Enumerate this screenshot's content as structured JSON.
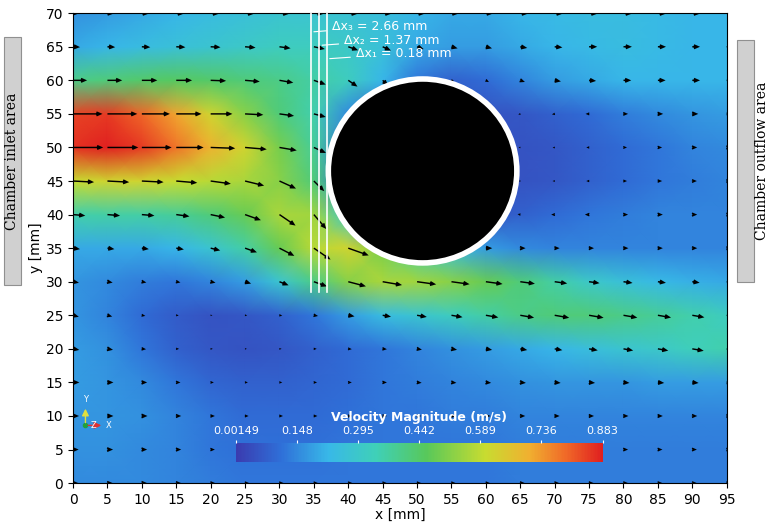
{
  "chart_data": {
    "type": "vector_field",
    "xlabel": "x [mm]",
    "ylabel": "y [mm]",
    "xlim": [
      0,
      95
    ],
    "ylim": [
      0,
      70
    ],
    "xticks": [
      0,
      5,
      10,
      15,
      20,
      25,
      30,
      35,
      40,
      45,
      50,
      55,
      60,
      65,
      70,
      75,
      80,
      85,
      90,
      95
    ],
    "yticks": [
      0,
      5,
      10,
      15,
      20,
      25,
      30,
      35,
      40,
      45,
      50,
      55,
      60,
      65,
      70
    ],
    "x": [
      0,
      5,
      10,
      15,
      20,
      25,
      30,
      35,
      40,
      45,
      50,
      55,
      60,
      65,
      70,
      75,
      80,
      85,
      90,
      95
    ],
    "y": [
      0,
      5,
      10,
      15,
      20,
      25,
      30,
      35,
      40,
      45,
      50,
      55,
      60,
      65,
      70
    ],
    "cells": [
      [
        0.15,
        0.15,
        0.15,
        0.14,
        0.13,
        0.12,
        0.12,
        0.12,
        0.12,
        0.12,
        0.12,
        0.12,
        0.12,
        0.13,
        0.13,
        0.13,
        0.13,
        0.13,
        0.13,
        0.13
      ],
      [
        0.16,
        0.16,
        0.15,
        0.14,
        0.12,
        0.11,
        0.11,
        0.11,
        0.12,
        0.12,
        0.12,
        0.12,
        0.12,
        0.13,
        0.13,
        0.13,
        0.13,
        0.13,
        0.13,
        0.13
      ],
      [
        0.17,
        0.17,
        0.16,
        0.14,
        0.12,
        0.1,
        0.1,
        0.1,
        0.11,
        0.12,
        0.12,
        0.13,
        0.13,
        0.14,
        0.14,
        0.14,
        0.14,
        0.14,
        0.14,
        0.14
      ],
      [
        0.18,
        0.17,
        0.15,
        0.12,
        0.09,
        0.08,
        0.08,
        0.09,
        0.1,
        0.12,
        0.13,
        0.14,
        0.15,
        0.16,
        0.17,
        0.17,
        0.17,
        0.18,
        0.18,
        0.18
      ],
      [
        0.18,
        0.16,
        0.12,
        0.08,
        0.06,
        0.05,
        0.06,
        0.08,
        0.1,
        0.12,
        0.14,
        0.16,
        0.18,
        0.2,
        0.22,
        0.25,
        0.28,
        0.3,
        0.33,
        0.35
      ],
      [
        0.17,
        0.14,
        0.1,
        0.07,
        0.05,
        0.06,
        0.08,
        0.12,
        0.18,
        0.24,
        0.28,
        0.32,
        0.36,
        0.4,
        0.42,
        0.42,
        0.4,
        0.38,
        0.35,
        0.32
      ],
      [
        0.17,
        0.15,
        0.13,
        0.12,
        0.14,
        0.18,
        0.28,
        0.4,
        0.52,
        0.56,
        0.55,
        0.52,
        0.48,
        0.42,
        0.36,
        0.3,
        0.26,
        0.23,
        0.21,
        0.2
      ],
      [
        0.2,
        0.2,
        0.2,
        0.22,
        0.28,
        0.36,
        0.48,
        0.58,
        0.62,
        0.5,
        0.35,
        0.25,
        0.18,
        0.15,
        0.14,
        0.14,
        0.14,
        0.14,
        0.14,
        0.14
      ],
      [
        0.35,
        0.36,
        0.36,
        0.38,
        0.42,
        0.48,
        0.56,
        0.55,
        0.3,
        0.1,
        0.05,
        0.05,
        0.05,
        0.08,
        0.1,
        0.12,
        0.13,
        0.14,
        0.14,
        0.14
      ],
      [
        0.6,
        0.62,
        0.62,
        0.6,
        0.58,
        0.56,
        0.52,
        0.42,
        0.1,
        0.05,
        0.05,
        0.05,
        0.05,
        0.05,
        0.06,
        0.08,
        0.1,
        0.12,
        0.13,
        0.14
      ],
      [
        0.86,
        0.88,
        0.85,
        0.78,
        0.7,
        0.62,
        0.5,
        0.38,
        0.1,
        0.05,
        0.05,
        0.05,
        0.05,
        0.05,
        0.06,
        0.08,
        0.1,
        0.12,
        0.14,
        0.15
      ],
      [
        0.84,
        0.85,
        0.8,
        0.72,
        0.62,
        0.52,
        0.42,
        0.35,
        0.15,
        0.05,
        0.05,
        0.05,
        0.05,
        0.06,
        0.08,
        0.1,
        0.13,
        0.15,
        0.17,
        0.18
      ],
      [
        0.4,
        0.42,
        0.44,
        0.45,
        0.44,
        0.42,
        0.4,
        0.36,
        0.32,
        0.22,
        0.12,
        0.08,
        0.1,
        0.14,
        0.18,
        0.2,
        0.22,
        0.22,
        0.22,
        0.22
      ],
      [
        0.2,
        0.22,
        0.24,
        0.26,
        0.28,
        0.3,
        0.32,
        0.32,
        0.3,
        0.26,
        0.2,
        0.18,
        0.18,
        0.2,
        0.22,
        0.23,
        0.24,
        0.23,
        0.22,
        0.22
      ],
      [
        0.16,
        0.18,
        0.2,
        0.22,
        0.24,
        0.26,
        0.28,
        0.28,
        0.27,
        0.25,
        0.22,
        0.2,
        0.2,
        0.22,
        0.23,
        0.24,
        0.24,
        0.23,
        0.22,
        0.22
      ]
    ],
    "vector_angles": [
      [
        0,
        0,
        0,
        0,
        0,
        0,
        0,
        0,
        0,
        0,
        0,
        0,
        0,
        0,
        0,
        0,
        0,
        0,
        0,
        0
      ],
      [
        0,
        0,
        0,
        0,
        0,
        0,
        0,
        0,
        0,
        0,
        0,
        0,
        0,
        0,
        0,
        0,
        0,
        0,
        0,
        0
      ],
      [
        0,
        0,
        0,
        0,
        0,
        0,
        0,
        0,
        0,
        0,
        0,
        0,
        0,
        0,
        0,
        0,
        0,
        0,
        0,
        0
      ],
      [
        0,
        0,
        0,
        0,
        0,
        0,
        0,
        0,
        0,
        0,
        -5,
        -5,
        -5,
        -5,
        -5,
        -5,
        -5,
        -5,
        -5,
        -5
      ],
      [
        -10,
        -10,
        -5,
        0,
        0,
        0,
        0,
        0,
        -5,
        -5,
        -10,
        -10,
        -10,
        -10,
        -10,
        -10,
        -10,
        -10,
        -10,
        -10
      ],
      [
        -15,
        -15,
        -10,
        -5,
        -5,
        -5,
        -10,
        -10,
        -10,
        -10,
        -10,
        -10,
        -10,
        -10,
        -10,
        -10,
        -10,
        -10,
        -10,
        -10
      ],
      [
        -10,
        -10,
        -10,
        -10,
        -12,
        -18,
        -22,
        -20,
        -15,
        -10,
        -8,
        -8,
        -8,
        -8,
        -8,
        -8,
        -8,
        -8,
        -8,
        -8
      ],
      [
        -8,
        -8,
        -8,
        -10,
        -14,
        -20,
        -28,
        -35,
        -20,
        -10,
        -5,
        0,
        0,
        0,
        0,
        0,
        0,
        0,
        0,
        0
      ],
      [
        -5,
        -5,
        -5,
        -8,
        -12,
        -20,
        -35,
        -50,
        -40,
        0,
        0,
        0,
        0,
        170,
        180,
        180,
        0,
        0,
        0,
        0
      ],
      [
        -3,
        -3,
        -3,
        -5,
        -8,
        -14,
        -25,
        -45,
        -70,
        0,
        0,
        0,
        0,
        180,
        180,
        180,
        0,
        0,
        0,
        0
      ],
      [
        0,
        0,
        0,
        0,
        -2,
        -5,
        -10,
        -25,
        -80,
        0,
        0,
        0,
        0,
        180,
        -170,
        180,
        0,
        0,
        0,
        0
      ],
      [
        0,
        0,
        0,
        0,
        0,
        -3,
        -8,
        -15,
        -50,
        0,
        0,
        0,
        0,
        -160,
        -170,
        180,
        0,
        0,
        0,
        0
      ],
      [
        0,
        0,
        0,
        0,
        -2,
        -5,
        -10,
        -20,
        -35,
        -45,
        -30,
        -20,
        -30,
        -20,
        -10,
        -5,
        0,
        0,
        0,
        0
      ],
      [
        -3,
        -3,
        -3,
        -3,
        -3,
        -5,
        -8,
        -12,
        -20,
        -25,
        -20,
        -15,
        -15,
        -10,
        -5,
        0,
        0,
        0,
        0,
        0
      ],
      [
        -3,
        -3,
        -3,
        -3,
        -3,
        -3,
        -3,
        -3,
        -3,
        -3,
        -3,
        -3,
        -3,
        -3,
        -3,
        -3,
        -3,
        -3,
        -3,
        -3
      ]
    ],
    "colorbar": {
      "label": "Velocity Magnitude (m/s)",
      "range": [
        0.00149,
        0.883
      ],
      "ticks": [
        0.00149,
        0.148,
        0.295,
        0.442,
        0.589,
        0.736,
        0.883
      ]
    },
    "cylinder": {
      "center": [
        50.8,
        46.5
      ],
      "radius": 13.7
    },
    "lines": [
      {
        "x": 34.6,
        "label": "Δx₃ = 2.66 mm"
      },
      {
        "x": 35.8,
        "label": "Δx₂ = 1.37 mm"
      },
      {
        "x": 36.9,
        "label": "Δx₁ = 0.18 mm"
      }
    ],
    "lines_y_range": [
      28.5,
      70
    ],
    "annotations": {
      "inlet": "Chamber inlet area",
      "outlet": "Chamber outflow area",
      "triad": [
        "X",
        "Y",
        "Z"
      ]
    }
  }
}
